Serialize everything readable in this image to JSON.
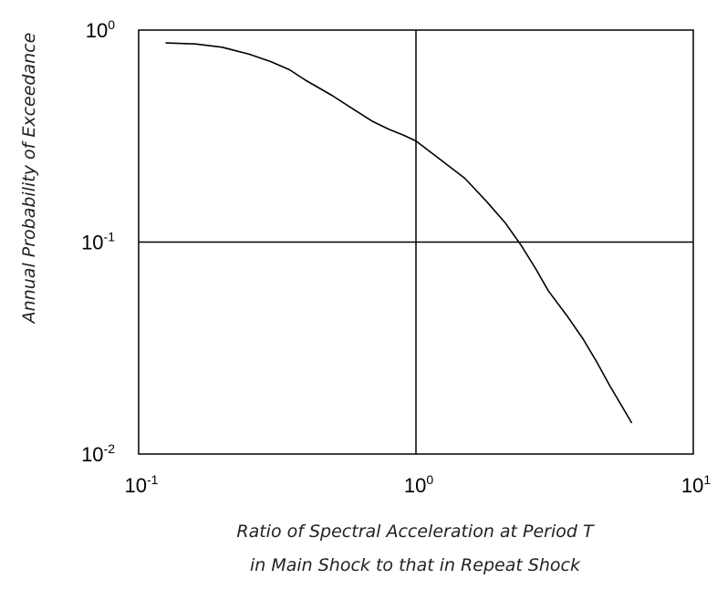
{
  "chart_data": {
    "type": "line",
    "title": "",
    "xlabel_lines": [
      "Ratio of Spectral Acceleration at Period T",
      "in Main Shock to that in Repeat Shock"
    ],
    "ylabel": "Annual Probability of Exceedance",
    "x_scale": "log",
    "y_scale": "log",
    "xlim": [
      0.1,
      10
    ],
    "ylim": [
      0.01,
      1
    ],
    "x_ticks": [
      {
        "value": 0.1,
        "base": "10",
        "exp": "-1"
      },
      {
        "value": 1,
        "base": "10",
        "exp": "0"
      },
      {
        "value": 10,
        "base": "10",
        "exp": "1"
      }
    ],
    "y_ticks": [
      {
        "value": 0.01,
        "base": "10",
        "exp": "-2"
      },
      {
        "value": 0.1,
        "base": "10",
        "exp": "-1"
      },
      {
        "value": 1,
        "base": "10",
        "exp": "0"
      }
    ],
    "grid": true,
    "series": [
      {
        "color": "#000000",
        "points": [
          [
            0.125,
            0.87
          ],
          [
            0.16,
            0.86
          ],
          [
            0.2,
            0.83
          ],
          [
            0.25,
            0.77
          ],
          [
            0.3,
            0.71
          ],
          [
            0.35,
            0.65
          ],
          [
            0.4,
            0.58
          ],
          [
            0.5,
            0.49
          ],
          [
            0.6,
            0.42
          ],
          [
            0.7,
            0.37
          ],
          [
            0.8,
            0.34
          ],
          [
            0.9,
            0.32
          ],
          [
            1.0,
            0.3
          ],
          [
            1.2,
            0.25
          ],
          [
            1.5,
            0.2
          ],
          [
            1.8,
            0.155
          ],
          [
            2.1,
            0.123
          ],
          [
            2.4,
            0.096
          ],
          [
            2.7,
            0.075
          ],
          [
            3.0,
            0.059
          ],
          [
            3.5,
            0.045
          ],
          [
            4.0,
            0.035
          ],
          [
            4.5,
            0.027
          ],
          [
            5.0,
            0.021
          ],
          [
            5.5,
            0.017
          ],
          [
            6.0,
            0.014
          ]
        ]
      }
    ]
  }
}
